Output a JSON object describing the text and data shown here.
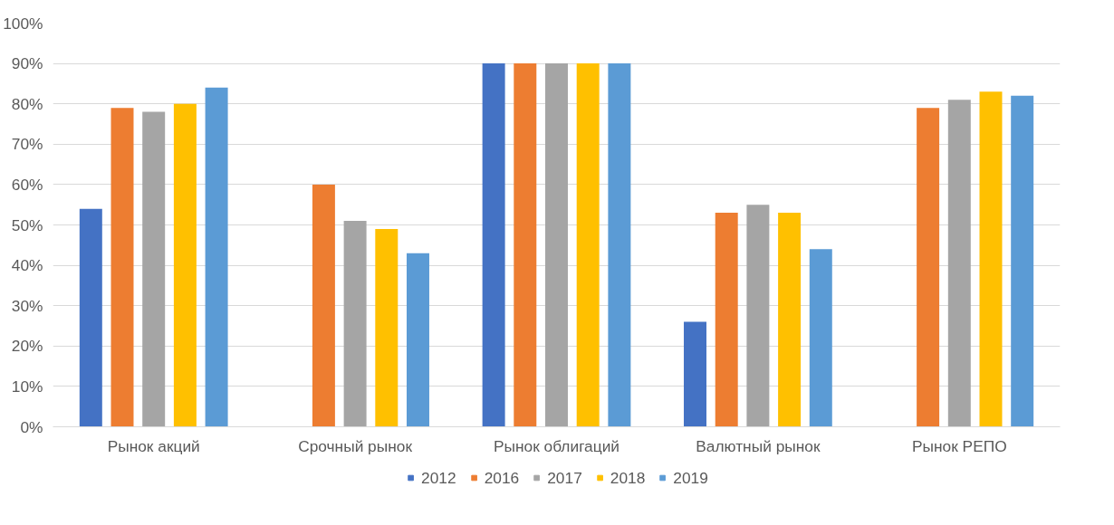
{
  "chart_data": {
    "type": "bar",
    "categories": [
      "Рынок акций",
      "Срочный рынок",
      "Рынок облигаций",
      "Валютный рынок",
      "Рынок РЕПО"
    ],
    "series": [
      {
        "name": "2012",
        "color": "#4472c4",
        "values": [
          54,
          null,
          90,
          26,
          null
        ]
      },
      {
        "name": "2016",
        "color": "#ed7d31",
        "values": [
          79,
          60,
          90,
          53,
          79
        ]
      },
      {
        "name": "2017",
        "color": "#a5a5a5",
        "values": [
          78,
          51,
          90,
          55,
          81
        ]
      },
      {
        "name": "2018",
        "color": "#ffc000",
        "values": [
          80,
          49,
          90,
          53,
          83
        ]
      },
      {
        "name": "2019",
        "color": "#5b9bd5",
        "values": [
          84,
          43,
          90,
          44,
          82
        ]
      }
    ],
    "ylim": [
      0,
      100
    ],
    "yticks": [
      {
        "value": 0,
        "label": "0%"
      },
      {
        "value": 10,
        "label": "10%"
      },
      {
        "value": 20,
        "label": "20%"
      },
      {
        "value": 30,
        "label": "30%"
      },
      {
        "value": 40,
        "label": "40%"
      },
      {
        "value": 50,
        "label": "50%"
      },
      {
        "value": 60,
        "label": "60%"
      },
      {
        "value": 70,
        "label": "70%"
      },
      {
        "value": 80,
        "label": "80%"
      },
      {
        "value": 90,
        "label": "90%"
      },
      {
        "value": 100,
        "label": "100%"
      }
    ],
    "grid": "y",
    "legend": "bottom"
  }
}
